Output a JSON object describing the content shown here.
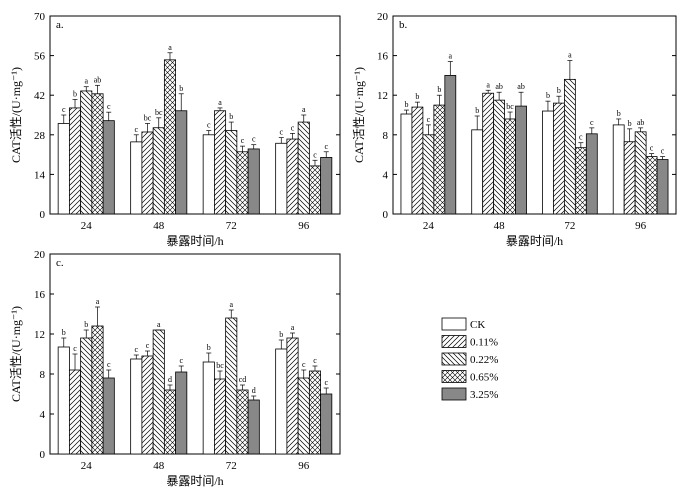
{
  "chart_data": [
    {
      "type": "bar",
      "panel_label": "a.",
      "categories": [
        "24",
        "48",
        "72",
        "96"
      ],
      "ylim": [
        0,
        70
      ],
      "yticks": [
        0,
        14,
        28,
        42,
        56,
        70
      ],
      "xlabel": "暴露时间/h",
      "ylabel": "CAT活性/(U·mg⁻¹)",
      "series": [
        {
          "name": "CK",
          "values": [
            32.0,
            25.5,
            28.0,
            25.0
          ],
          "errors": [
            3.0,
            2.5,
            1.5,
            2.0
          ],
          "letters": [
            "c",
            "c",
            "c",
            "c"
          ]
        },
        {
          "name": "0.11%",
          "values": [
            37.5,
            29.0,
            36.5,
            26.5
          ],
          "errors": [
            3.0,
            3.0,
            1.0,
            2.0
          ],
          "letters": [
            "b",
            "bc",
            "a",
            "c"
          ]
        },
        {
          "name": "0.22%",
          "values": [
            43.5,
            30.5,
            29.5,
            32.5
          ],
          "errors": [
            1.5,
            3.5,
            3.0,
            2.5
          ],
          "letters": [
            "a",
            "bc",
            "b",
            "a"
          ]
        },
        {
          "name": "0.65%",
          "values": [
            42.5,
            54.5,
            22.0,
            17.0
          ],
          "errors": [
            3.0,
            2.5,
            2.0,
            2.0
          ],
          "letters": [
            "ab",
            "a",
            "c",
            "c"
          ]
        },
        {
          "name": "3.25%",
          "values": [
            33.0,
            36.5,
            23.0,
            20.0
          ],
          "errors": [
            3.0,
            6.0,
            1.5,
            2.0
          ],
          "letters": [
            "c",
            "b",
            "c",
            "c"
          ]
        }
      ]
    },
    {
      "type": "bar",
      "panel_label": "b.",
      "categories": [
        "24",
        "48",
        "72",
        "96"
      ],
      "ylim": [
        0,
        20
      ],
      "yticks": [
        0,
        4,
        8,
        12,
        16,
        20
      ],
      "xlabel": "暴露时间/h",
      "ylabel": "CAT活性/(U·mg⁻¹)",
      "series": [
        {
          "name": "CK",
          "values": [
            10.1,
            8.5,
            10.4,
            9.0
          ],
          "errors": [
            0.4,
            1.4,
            1.0,
            0.6
          ],
          "letters": [
            "b",
            "b",
            "b",
            "b"
          ]
        },
        {
          "name": "0.11%",
          "values": [
            10.8,
            12.2,
            11.2,
            7.3
          ],
          "errors": [
            0.5,
            0.3,
            0.7,
            1.3
          ],
          "letters": [
            "b",
            "a",
            "b",
            "b"
          ]
        },
        {
          "name": "0.22%",
          "values": [
            8.0,
            11.5,
            13.6,
            8.3
          ],
          "errors": [
            1.0,
            0.8,
            1.9,
            0.4
          ],
          "letters": [
            "c",
            "ab",
            "a",
            "ab"
          ]
        },
        {
          "name": "0.65%",
          "values": [
            11.0,
            9.6,
            6.7,
            5.8
          ],
          "errors": [
            1.0,
            0.7,
            0.5,
            0.3
          ],
          "letters": [
            "b",
            "bc",
            "c",
            "c"
          ]
        },
        {
          "name": "3.25%",
          "values": [
            14.0,
            10.9,
            8.1,
            5.5
          ],
          "errors": [
            1.4,
            1.4,
            0.6,
            0.3
          ],
          "letters": [
            "a",
            "ab",
            "c",
            "c"
          ]
        }
      ]
    },
    {
      "type": "bar",
      "panel_label": "c.",
      "categories": [
        "24",
        "48",
        "72",
        "96"
      ],
      "ylim": [
        0,
        20
      ],
      "yticks": [
        0,
        4,
        8,
        12,
        16,
        20
      ],
      "xlabel": "暴露时间/h",
      "ylabel": "CAT活性/(U·mg⁻¹)",
      "series": [
        {
          "name": "CK",
          "values": [
            10.7,
            9.5,
            9.2,
            10.5
          ],
          "errors": [
            0.9,
            0.4,
            0.9,
            0.9
          ],
          "letters": [
            "b",
            "c",
            "b",
            "b"
          ]
        },
        {
          "name": "0.11%",
          "values": [
            8.4,
            9.8,
            7.5,
            11.6
          ],
          "errors": [
            1.6,
            0.5,
            0.8,
            0.5
          ],
          "letters": [
            "c",
            "c",
            "bc",
            "a"
          ]
        },
        {
          "name": "0.22%",
          "values": [
            11.6,
            12.4,
            13.6,
            7.6
          ],
          "errors": [
            0.8,
            0.0,
            0.8,
            0.8
          ],
          "letters": [
            "b",
            "a",
            "a",
            "c"
          ]
        },
        {
          "name": "0.65%",
          "values": [
            12.8,
            6.4,
            6.4,
            8.3
          ],
          "errors": [
            1.9,
            0.5,
            0.5,
            0.5
          ],
          "letters": [
            "a",
            "d",
            "cd",
            "c"
          ]
        },
        {
          "name": "3.25%",
          "values": [
            7.6,
            8.2,
            5.4,
            6.0
          ],
          "errors": [
            0.8,
            0.6,
            0.4,
            0.6
          ],
          "letters": [
            "c",
            "c",
            "d",
            "c"
          ]
        }
      ]
    }
  ],
  "legend": {
    "items": [
      {
        "label": "CK",
        "pattern": "blank"
      },
      {
        "label": "0.11%",
        "pattern": "diag-right"
      },
      {
        "label": "0.22%",
        "pattern": "diag-left"
      },
      {
        "label": "0.65%",
        "pattern": "cross"
      },
      {
        "label": "3.25%",
        "pattern": "solid-gray"
      }
    ]
  }
}
